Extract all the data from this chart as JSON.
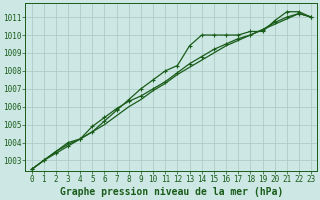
{
  "title": "Graphe pression niveau de la mer (hPa)",
  "bg_color": "#cde8e4",
  "grid_color": "#a8c8c0",
  "line_color": "#1a5c1a",
  "xlim": [
    -0.5,
    23.5
  ],
  "ylim": [
    1002.4,
    1011.8
  ],
  "yticks": [
    1003,
    1004,
    1005,
    1006,
    1007,
    1008,
    1009,
    1010,
    1011
  ],
  "xticks": [
    0,
    1,
    2,
    3,
    4,
    5,
    6,
    7,
    8,
    9,
    10,
    11,
    12,
    13,
    14,
    15,
    16,
    17,
    18,
    19,
    20,
    21,
    22,
    23
  ],
  "line_smooth": [
    1002.5,
    1003.0,
    1003.5,
    1003.9,
    1004.2,
    1004.6,
    1005.0,
    1005.5,
    1006.0,
    1006.4,
    1006.9,
    1007.3,
    1007.8,
    1008.2,
    1008.6,
    1009.0,
    1009.4,
    1009.7,
    1010.0,
    1010.3,
    1010.6,
    1010.9,
    1011.2,
    1011.0
  ],
  "line_upper": [
    1002.5,
    1003.0,
    1003.4,
    1003.8,
    1004.2,
    1004.6,
    1005.2,
    1005.8,
    1006.4,
    1007.0,
    1007.5,
    1008.0,
    1008.3,
    1009.4,
    1010.0,
    1010.0,
    1010.0,
    1010.0,
    1010.2,
    1010.2,
    1010.8,
    1011.3,
    1011.3,
    1011.0
  ],
  "line_lower": [
    1002.5,
    1003.0,
    1003.5,
    1004.0,
    1004.2,
    1004.9,
    1005.4,
    1005.9,
    1006.3,
    1006.6,
    1007.0,
    1007.4,
    1007.9,
    1008.4,
    1008.8,
    1009.2,
    1009.5,
    1009.8,
    1010.0,
    1010.3,
    1010.7,
    1011.0,
    1011.2,
    1011.0
  ],
  "tick_fontsize": 5.5,
  "title_fontsize": 7,
  "marker_size": 3.0,
  "lw": 0.9
}
